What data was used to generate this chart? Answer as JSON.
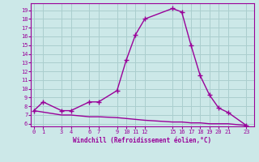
{
  "xlabel": "Windchill (Refroidissement éolien,°C)",
  "line1_x": [
    0,
    1,
    3,
    4,
    6,
    7,
    9,
    10,
    11,
    12,
    15,
    16,
    17,
    18,
    19,
    20,
    21,
    23
  ],
  "line1_y": [
    7.5,
    8.5,
    7.5,
    7.5,
    8.5,
    8.5,
    9.8,
    13.3,
    16.2,
    18.0,
    19.2,
    18.8,
    15.0,
    11.5,
    9.3,
    7.8,
    7.3,
    5.8
  ],
  "line2_x": [
    0,
    3,
    4,
    6,
    7,
    9,
    10,
    11,
    12,
    15,
    16,
    17,
    18,
    19,
    20,
    21,
    23
  ],
  "line2_y": [
    7.5,
    7.0,
    7.0,
    6.8,
    6.8,
    6.7,
    6.6,
    6.5,
    6.4,
    6.2,
    6.2,
    6.1,
    6.1,
    6.0,
    6.0,
    6.0,
    5.8
  ],
  "line_color": "#990099",
  "bg_color": "#cce8e8",
  "grid_color": "#aacece",
  "yticks": [
    6,
    7,
    8,
    9,
    10,
    11,
    12,
    13,
    14,
    15,
    16,
    17,
    18,
    19
  ],
  "xticks": [
    0,
    1,
    3,
    4,
    6,
    7,
    9,
    10,
    11,
    12,
    15,
    16,
    17,
    18,
    19,
    20,
    21,
    23
  ],
  "xlim": [
    -0.3,
    23.8
  ],
  "ylim": [
    5.7,
    19.8
  ]
}
